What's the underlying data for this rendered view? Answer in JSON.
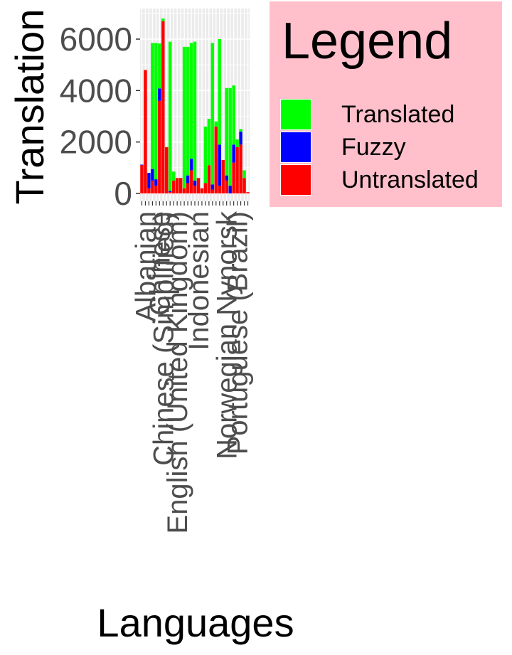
{
  "chart_data": {
    "type": "bar",
    "stacked": true,
    "ylabel": "Translation",
    "xlabel": "Languages",
    "ylim": [
      0,
      7000
    ],
    "yticks": [
      0,
      2000,
      4000,
      6000
    ],
    "grid": true,
    "legend": {
      "title": "Legend",
      "placement": "right"
    },
    "colors": {
      "Translated": "#00ff00",
      "Fuzzy": "#0000ff",
      "Untranslated": "#ff0000"
    },
    "categories": [
      "",
      "Albanian",
      "",
      "",
      "",
      "Chinese",
      "Chinese (Simplified)",
      "",
      "",
      "",
      "English (United Kingdom)",
      "",
      "",
      "",
      "",
      "",
      "Indonesian",
      "",
      "",
      "",
      "",
      "",
      "",
      "",
      "Norwegian Nynorsk",
      "",
      "",
      "Portuguese (Brazil)",
      "",
      "",
      ""
    ],
    "series": [
      {
        "name": "Untranslated",
        "values": [
          1100,
          4800,
          200,
          500,
          300,
          3600,
          6700,
          1800,
          50,
          500,
          600,
          600,
          200,
          400,
          900,
          300,
          600,
          200,
          400,
          1100,
          150,
          2600,
          300,
          1300,
          500,
          0,
          1200,
          1800,
          1900,
          600,
          50
        ]
      },
      {
        "name": "Fuzzy",
        "values": [
          20,
          0,
          600,
          450,
          250,
          480,
          0,
          0,
          50,
          0,
          0,
          0,
          0,
          300,
          450,
          200,
          0,
          0,
          0,
          0,
          200,
          0,
          1600,
          0,
          200,
          300,
          700,
          0,
          500,
          0,
          0
        ]
      },
      {
        "name": "Translated",
        "values": [
          0,
          0,
          0,
          4900,
          5300,
          1750,
          100,
          0,
          5800,
          350,
          0,
          0,
          5500,
          5000,
          4500,
          5400,
          0,
          0,
          2200,
          1800,
          5500,
          200,
          4100,
          0,
          3400,
          3800,
          2300,
          300,
          100,
          300,
          0
        ]
      }
    ]
  }
}
